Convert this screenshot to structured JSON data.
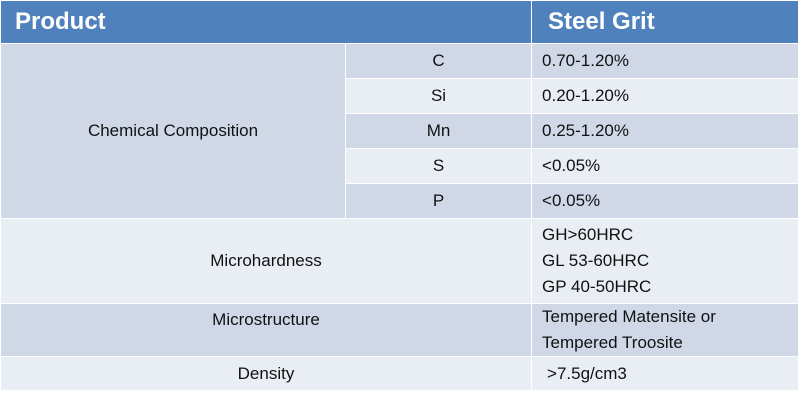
{
  "header": {
    "product_label": "Product",
    "value_label": "Steel Grit"
  },
  "chemical_composition": {
    "label": "Chemical Composition",
    "elements": [
      {
        "symbol": "C",
        "value": "0.70-1.20%"
      },
      {
        "symbol": "Si",
        "value": "0.20-1.20%"
      },
      {
        "symbol": "Mn",
        "value": "0.25-1.20%"
      },
      {
        "symbol": "S",
        "value": "<0.05%"
      },
      {
        "symbol": "P",
        "value": "<0.05%"
      }
    ]
  },
  "microhardness": {
    "label": "Microhardness",
    "values": [
      "GH>60HRC",
      "GL 53-60HRC",
      "GP 40-50HRC"
    ]
  },
  "microstructure": {
    "label": "Microstructure",
    "values": [
      "Tempered Matensite or",
      "Tempered Troosite"
    ]
  },
  "density": {
    "label": "Density",
    "value": ">7.5g/cm3"
  },
  "colors": {
    "header": "#4f81bd",
    "band_dark": "#d0d8e8",
    "band_light": "#e9edf4"
  }
}
